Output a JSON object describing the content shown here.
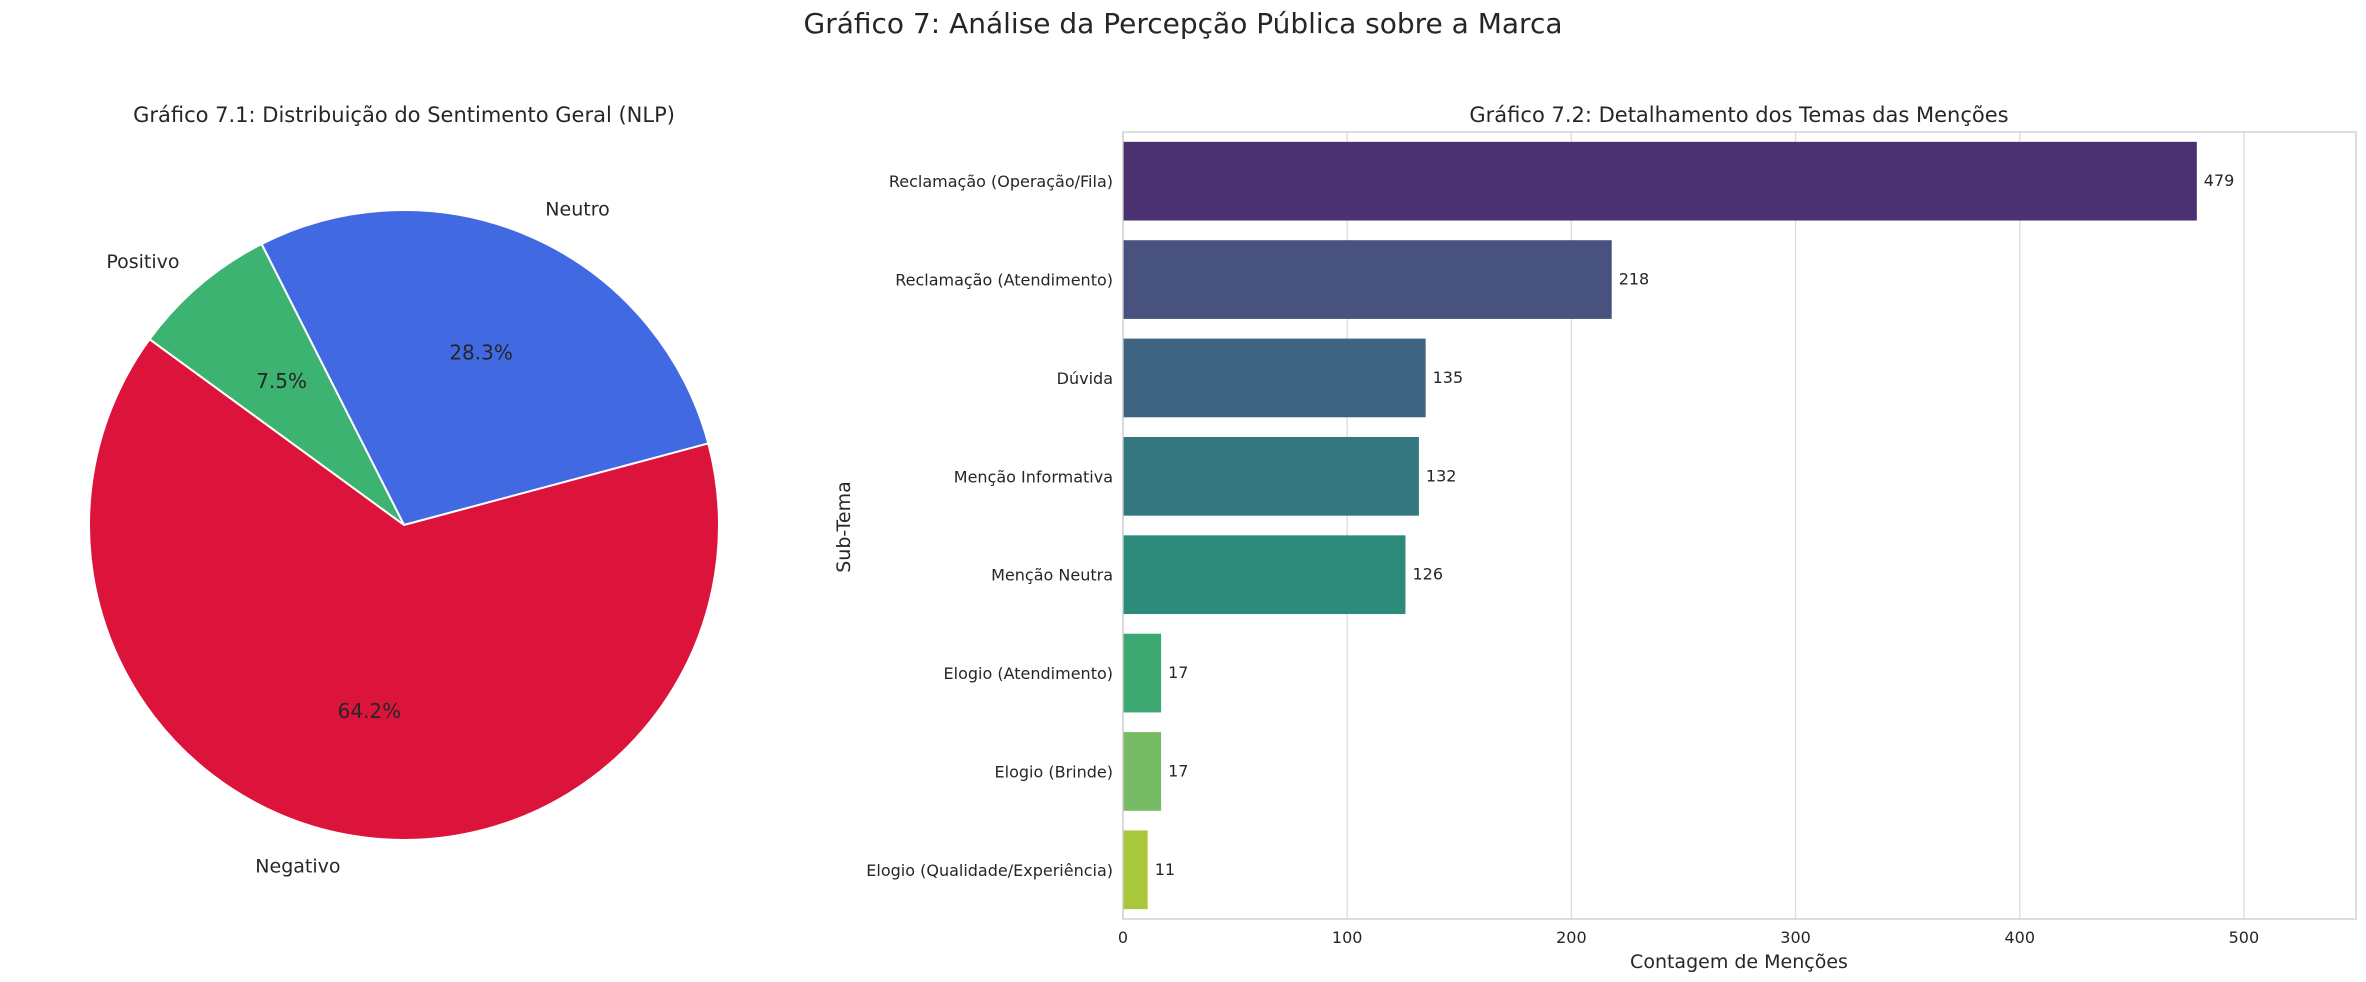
{
  "figure": {
    "title": "Gráfico 7: Análise da Percepção Pública sobre a Marca"
  },
  "chart_data": [
    {
      "type": "pie",
      "title": "Gráfico 7.1: Distribuição do Sentimento Geral (NLP)",
      "slices": [
        {
          "label": "Neutro",
          "value": 28.3,
          "pct_label": "28.3%",
          "color": "#4169E1"
        },
        {
          "label": "Positivo",
          "value": 7.5,
          "pct_label": "7.5%",
          "color": "#3CB371"
        },
        {
          "label": "Negativo",
          "value": 64.2,
          "pct_label": "64.2%",
          "color": "#DC143C"
        }
      ]
    },
    {
      "type": "bar",
      "orientation": "horizontal",
      "title": "Gráfico 7.2: Detalhamento dos Temas das Menções",
      "xlabel": "Contagem de Menções",
      "ylabel": "Sub-Tema",
      "xlim": [
        0,
        550
      ],
      "xticks": [
        0,
        100,
        200,
        300,
        400,
        500
      ],
      "grid": true,
      "categories": [
        "Reclamação (Operação/Fila)",
        "Reclamação (Atendimento)",
        "Dúvida",
        "Menção Informativa",
        "Menção Neutra",
        "Elogio (Atendimento)",
        "Elogio (Brinde)",
        "Elogio (Qualidade/Experiência)"
      ],
      "values": [
        479,
        218,
        135,
        132,
        126,
        17,
        17,
        11
      ],
      "colors": [
        "#4B3170",
        "#48527F",
        "#3E6481",
        "#35777F",
        "#2C8B7B",
        "#3DA872",
        "#77BC65",
        "#A8C73A"
      ]
    }
  ]
}
